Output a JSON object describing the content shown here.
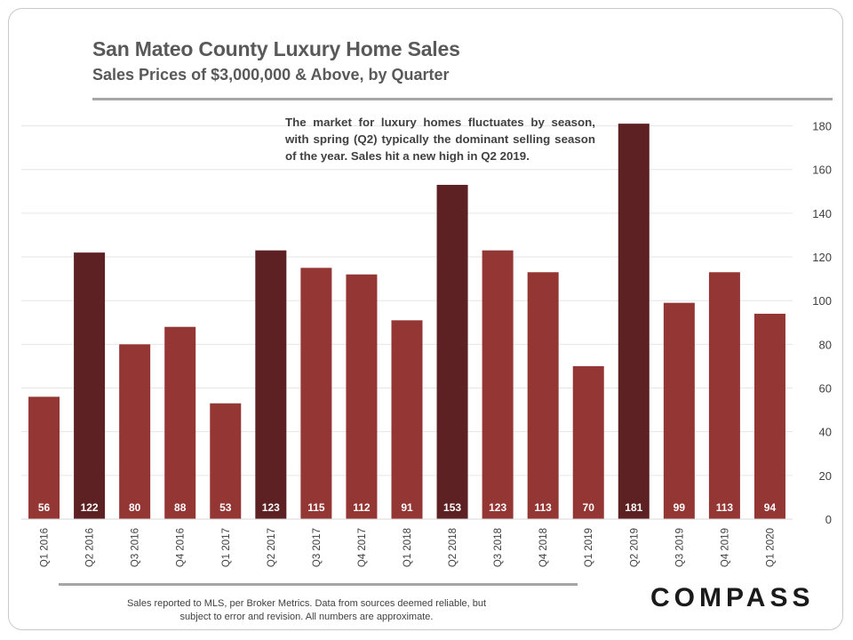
{
  "header": {
    "title": "San Mateo County Luxury Home Sales",
    "subtitle": "Sales Prices of $3,000,000 & Above, by Quarter"
  },
  "annotation": "The market for luxury homes fluctuates by season, with spring (Q2) typically the dominant selling season of the year.  Sales hit a new high in Q2 2019.",
  "footnote": {
    "line1": "Sales reported to MLS, per Broker Metrics. Data from sources deemed reliable, but",
    "line2": "subject to error and revision.  All numbers are approximate."
  },
  "logo": "COMPASS",
  "colors": {
    "q2_bar": "#5e2123",
    "other_bar": "#943634",
    "label_text": "#ffffff",
    "grid": "#e6e6e6",
    "axis_text": "#404040"
  },
  "chart_data": {
    "type": "bar",
    "categories": [
      "Q1 2016",
      "Q2 2016",
      "Q3 2016",
      "Q4 2016",
      "Q1 2017",
      "Q2 2017",
      "Q3 2017",
      "Q4 2017",
      "Q1 2018",
      "Q2 2018",
      "Q3 2018",
      "Q4 2018",
      "Q1 2019",
      "Q2 2019",
      "Q3 2019",
      "Q4 2019",
      "Q1 2020"
    ],
    "values": [
      56,
      122,
      80,
      88,
      53,
      123,
      115,
      112,
      91,
      153,
      123,
      113,
      70,
      181,
      99,
      113,
      94
    ],
    "highlight": [
      false,
      true,
      false,
      false,
      false,
      true,
      false,
      false,
      false,
      true,
      false,
      false,
      false,
      true,
      false,
      false,
      false
    ],
    "data_labels": true,
    "y_axis_side": "right",
    "ylim": [
      0,
      190
    ],
    "yticks": [
      0,
      20,
      40,
      60,
      80,
      100,
      120,
      140,
      160,
      180
    ],
    "grid": true,
    "legend": "none"
  }
}
